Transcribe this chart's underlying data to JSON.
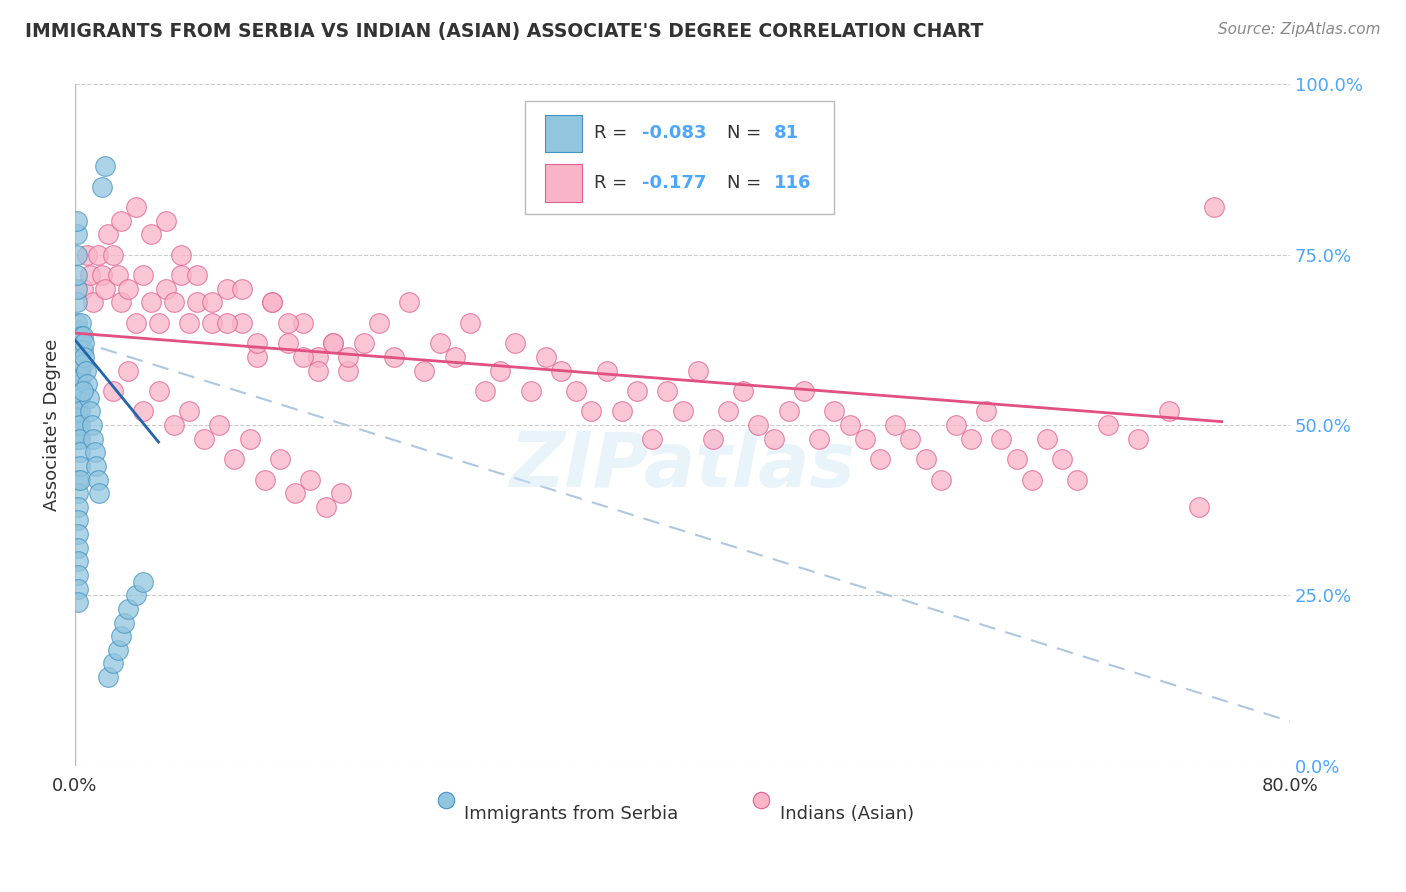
{
  "title": "IMMIGRANTS FROM SERBIA VS INDIAN (ASIAN) ASSOCIATE'S DEGREE CORRELATION CHART",
  "source": "Source: ZipAtlas.com",
  "ylabel": "Associate's Degree",
  "yticks": [
    "0.0%",
    "25.0%",
    "50.0%",
    "75.0%",
    "100.0%"
  ],
  "ytick_vals": [
    0.0,
    0.25,
    0.5,
    0.75,
    1.0
  ],
  "xlim": [
    0.0,
    0.8
  ],
  "ylim": [
    0.0,
    1.0
  ],
  "color_blue": "#92c5de",
  "color_blue_fill": "#92c5de",
  "color_blue_edge": "#4393c3",
  "color_blue_line": "#2166ac",
  "color_pink": "#f4a582",
  "color_pink_fill": "#f9b4c8",
  "color_pink_edge": "#e06090",
  "color_pink_line": "#e05080",
  "color_dashed": "#aec7e0",
  "bg_color": "#ffffff",
  "serbia_x": [
    0.001,
    0.001,
    0.001,
    0.001,
    0.001,
    0.001,
    0.001,
    0.001,
    0.001,
    0.001,
    0.001,
    0.001,
    0.001,
    0.001,
    0.001,
    0.001,
    0.001,
    0.001,
    0.001,
    0.001,
    0.002,
    0.002,
    0.002,
    0.002,
    0.002,
    0.002,
    0.002,
    0.002,
    0.002,
    0.002,
    0.002,
    0.002,
    0.002,
    0.002,
    0.002,
    0.002,
    0.002,
    0.002,
    0.002,
    0.002,
    0.003,
    0.003,
    0.003,
    0.003,
    0.003,
    0.003,
    0.003,
    0.003,
    0.003,
    0.003,
    0.004,
    0.004,
    0.004,
    0.004,
    0.004,
    0.005,
    0.005,
    0.005,
    0.006,
    0.006,
    0.007,
    0.008,
    0.009,
    0.01,
    0.011,
    0.012,
    0.013,
    0.014,
    0.015,
    0.016,
    0.018,
    0.02,
    0.022,
    0.025,
    0.028,
    0.03,
    0.032,
    0.035,
    0.04,
    0.045,
    0.005
  ],
  "serbia_y": [
    0.6,
    0.58,
    0.56,
    0.55,
    0.54,
    0.53,
    0.52,
    0.51,
    0.5,
    0.49,
    0.62,
    0.63,
    0.64,
    0.65,
    0.68,
    0.7,
    0.72,
    0.75,
    0.78,
    0.8,
    0.57,
    0.56,
    0.55,
    0.54,
    0.53,
    0.52,
    0.51,
    0.5,
    0.49,
    0.48,
    0.42,
    0.4,
    0.38,
    0.36,
    0.34,
    0.32,
    0.3,
    0.28,
    0.26,
    0.24,
    0.6,
    0.58,
    0.56,
    0.54,
    0.52,
    0.5,
    0.48,
    0.46,
    0.44,
    0.42,
    0.65,
    0.63,
    0.61,
    0.59,
    0.57,
    0.63,
    0.61,
    0.59,
    0.62,
    0.6,
    0.58,
    0.56,
    0.54,
    0.52,
    0.5,
    0.48,
    0.46,
    0.44,
    0.42,
    0.4,
    0.85,
    0.88,
    0.13,
    0.15,
    0.17,
    0.19,
    0.21,
    0.23,
    0.25,
    0.27,
    0.55
  ],
  "indian_x": [
    0.005,
    0.008,
    0.01,
    0.012,
    0.015,
    0.018,
    0.02,
    0.022,
    0.025,
    0.028,
    0.03,
    0.035,
    0.04,
    0.045,
    0.05,
    0.055,
    0.06,
    0.065,
    0.07,
    0.075,
    0.08,
    0.09,
    0.1,
    0.11,
    0.12,
    0.13,
    0.14,
    0.15,
    0.16,
    0.17,
    0.18,
    0.19,
    0.2,
    0.21,
    0.22,
    0.23,
    0.24,
    0.25,
    0.26,
    0.27,
    0.28,
    0.29,
    0.3,
    0.31,
    0.32,
    0.33,
    0.34,
    0.35,
    0.36,
    0.37,
    0.38,
    0.39,
    0.4,
    0.41,
    0.42,
    0.43,
    0.44,
    0.45,
    0.46,
    0.47,
    0.48,
    0.49,
    0.5,
    0.51,
    0.52,
    0.53,
    0.54,
    0.55,
    0.56,
    0.57,
    0.58,
    0.59,
    0.6,
    0.61,
    0.62,
    0.63,
    0.64,
    0.65,
    0.66,
    0.68,
    0.7,
    0.72,
    0.74,
    0.75,
    0.03,
    0.04,
    0.05,
    0.06,
    0.07,
    0.08,
    0.09,
    0.1,
    0.11,
    0.12,
    0.13,
    0.14,
    0.15,
    0.16,
    0.17,
    0.18,
    0.025,
    0.035,
    0.045,
    0.055,
    0.065,
    0.075,
    0.085,
    0.095,
    0.105,
    0.115,
    0.125,
    0.135,
    0.145,
    0.155,
    0.165,
    0.175
  ],
  "indian_y": [
    0.7,
    0.75,
    0.72,
    0.68,
    0.75,
    0.72,
    0.7,
    0.78,
    0.75,
    0.72,
    0.68,
    0.7,
    0.65,
    0.72,
    0.68,
    0.65,
    0.7,
    0.68,
    0.72,
    0.65,
    0.68,
    0.65,
    0.7,
    0.65,
    0.6,
    0.68,
    0.62,
    0.65,
    0.6,
    0.62,
    0.58,
    0.62,
    0.65,
    0.6,
    0.68,
    0.58,
    0.62,
    0.6,
    0.65,
    0.55,
    0.58,
    0.62,
    0.55,
    0.6,
    0.58,
    0.55,
    0.52,
    0.58,
    0.52,
    0.55,
    0.48,
    0.55,
    0.52,
    0.58,
    0.48,
    0.52,
    0.55,
    0.5,
    0.48,
    0.52,
    0.55,
    0.48,
    0.52,
    0.5,
    0.48,
    0.45,
    0.5,
    0.48,
    0.45,
    0.42,
    0.5,
    0.48,
    0.52,
    0.48,
    0.45,
    0.42,
    0.48,
    0.45,
    0.42,
    0.5,
    0.48,
    0.52,
    0.38,
    0.82,
    0.8,
    0.82,
    0.78,
    0.8,
    0.75,
    0.72,
    0.68,
    0.65,
    0.7,
    0.62,
    0.68,
    0.65,
    0.6,
    0.58,
    0.62,
    0.6,
    0.55,
    0.58,
    0.52,
    0.55,
    0.5,
    0.52,
    0.48,
    0.5,
    0.45,
    0.48,
    0.42,
    0.45,
    0.4,
    0.42,
    0.38,
    0.4
  ],
  "blue_line_x": [
    0.0,
    0.055
  ],
  "blue_line_y": [
    0.625,
    0.475
  ],
  "pink_line_x": [
    0.0,
    0.755
  ],
  "pink_line_y": [
    0.635,
    0.505
  ],
  "dash_line_x": [
    0.0,
    0.8
  ],
  "dash_line_y": [
    0.625,
    0.065
  ]
}
